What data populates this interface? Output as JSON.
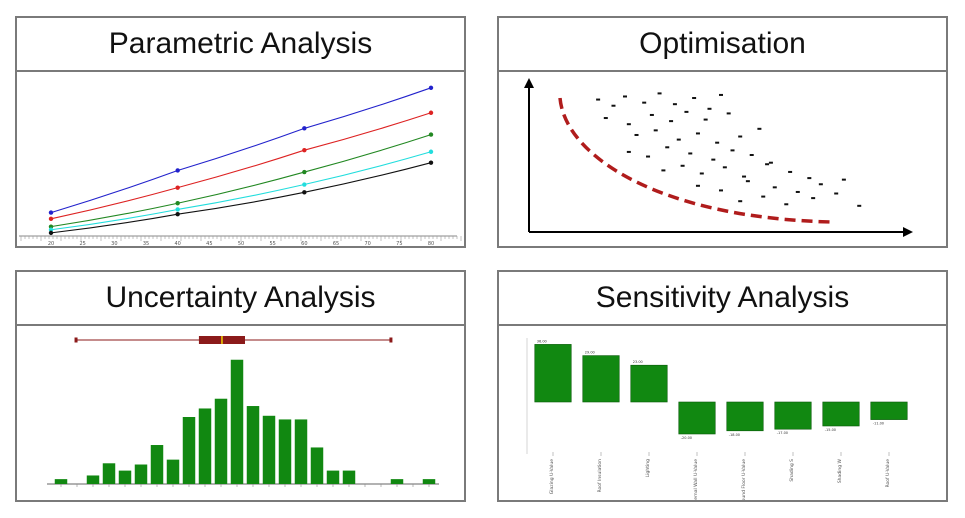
{
  "panels": {
    "parametric": {
      "title": "Parametric Analysis"
    },
    "optimisation": {
      "title": "Optimisation"
    },
    "uncertainty": {
      "title": "Uncertainty Analysis"
    },
    "sensitivity": {
      "title": "Sensitivity Analysis"
    }
  },
  "chart_data": [
    {
      "type": "line",
      "x": [
        20,
        40,
        60,
        80
      ],
      "xlim": [
        20,
        80
      ],
      "x_ticks": [
        20,
        25,
        30,
        35,
        40,
        45,
        50,
        55,
        60,
        65,
        70,
        75,
        80
      ],
      "ylim": [
        0,
        100
      ],
      "series": [
        {
          "color": "#2222cc",
          "values": [
            15,
            42,
            69,
            95
          ]
        },
        {
          "color": "#dd2222",
          "values": [
            11,
            31,
            55,
            79
          ]
        },
        {
          "color": "#228822",
          "values": [
            6,
            21,
            41,
            65
          ]
        },
        {
          "color": "#22dddd",
          "values": [
            4,
            17,
            33,
            54
          ]
        },
        {
          "color": "#111111",
          "values": [
            2,
            14,
            28,
            47
          ]
        }
      ]
    },
    {
      "type": "scatter",
      "frontier_color": "#b01c1c",
      "x": [
        0.18,
        0.22,
        0.25,
        0.3,
        0.34,
        0.38,
        0.43,
        0.47,
        0.5,
        0.2,
        0.26,
        0.32,
        0.37,
        0.41,
        0.46,
        0.52,
        0.28,
        0.33,
        0.39,
        0.44,
        0.49,
        0.55,
        0.6,
        0.26,
        0.31,
        0.36,
        0.42,
        0.48,
        0.53,
        0.58,
        0.63,
        0.35,
        0.4,
        0.45,
        0.51,
        0.56,
        0.62,
        0.68,
        0.73,
        0.44,
        0.5,
        0.57,
        0.64,
        0.7,
        0.76,
        0.82,
        0.55,
        0.61,
        0.67,
        0.74,
        0.8,
        0.86
      ],
      "y": [
        0.86,
        0.82,
        0.88,
        0.84,
        0.9,
        0.83,
        0.87,
        0.8,
        0.89,
        0.74,
        0.7,
        0.76,
        0.72,
        0.78,
        0.73,
        0.77,
        0.63,
        0.66,
        0.6,
        0.64,
        0.58,
        0.62,
        0.67,
        0.52,
        0.49,
        0.55,
        0.51,
        0.47,
        0.53,
        0.5,
        0.45,
        0.4,
        0.43,
        0.38,
        0.42,
        0.36,
        0.44,
        0.39,
        0.35,
        0.3,
        0.27,
        0.33,
        0.29,
        0.26,
        0.31,
        0.34,
        0.2,
        0.23,
        0.18,
        0.22,
        0.25,
        0.17
      ]
    },
    {
      "type": "bar",
      "bar_color": "#118811",
      "values": [
        4,
        0,
        7,
        17,
        11,
        16,
        32,
        20,
        55,
        62,
        70,
        102,
        64,
        56,
        53,
        53,
        30,
        11,
        11,
        0,
        0,
        4,
        0,
        4
      ],
      "ylim": [
        0,
        110
      ],
      "boxplot": {
        "whisker_low": 0.06,
        "q1": 0.38,
        "median": 0.44,
        "q3": 0.5,
        "whisker_high": 0.88
      }
    },
    {
      "type": "bar",
      "bar_color": "#118811",
      "categories": [
        "Glazing U-Value",
        "Roof Insulation",
        "Lighting",
        "External Wall U-Value",
        "Ground Floor U-Value",
        "Shading S",
        "Shading W",
        "Roof U-Value"
      ],
      "values": [
        36,
        29,
        23,
        -20,
        -18,
        -17,
        -15,
        -11
      ],
      "ylim": [
        -30,
        40
      ]
    }
  ]
}
